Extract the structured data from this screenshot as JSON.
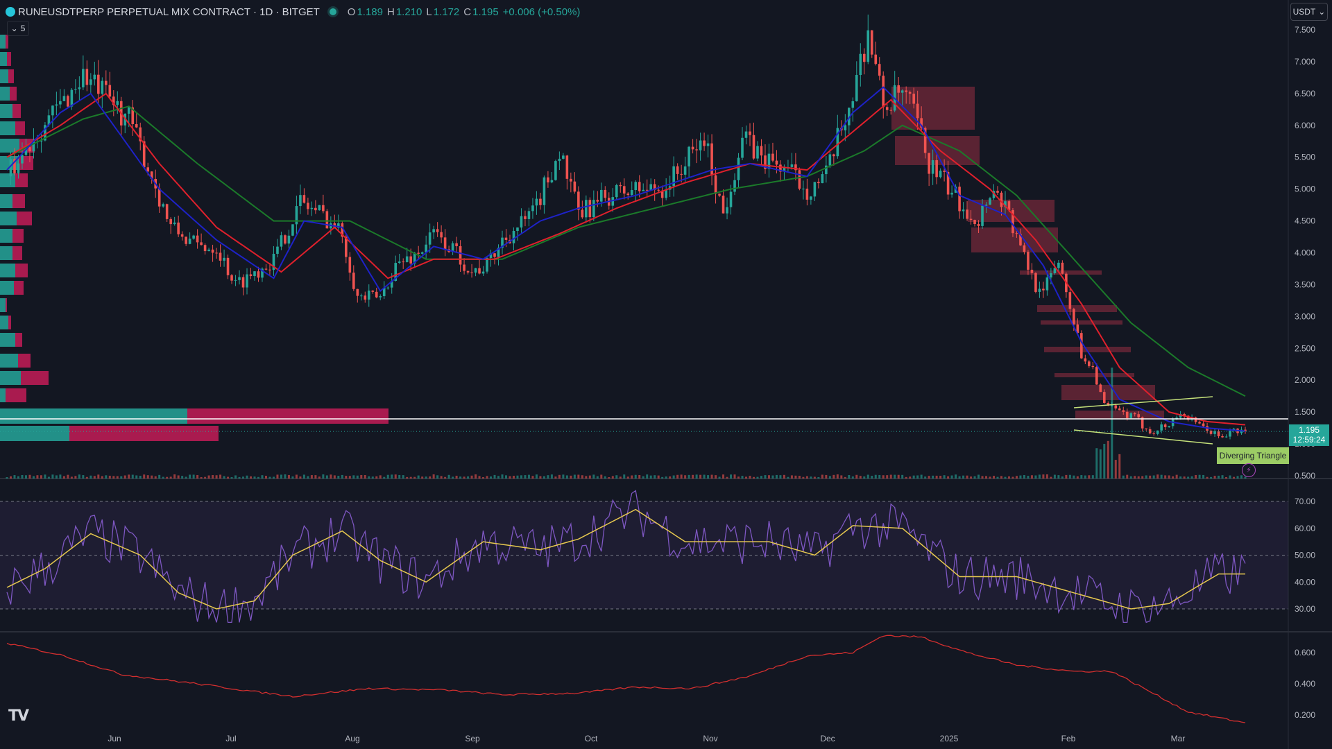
{
  "header": {
    "symbol": "RUNEUSDTPERP PERPETUAL MIX CONTRACT · 1D · BITGET",
    "open_label": "O",
    "open": "1.189",
    "high_label": "H",
    "high": "1.210",
    "low_label": "L",
    "low": "1.172",
    "close_label": "C",
    "close": "1.195",
    "change": "+0.006 (+0.50%)",
    "indicator_count": "5"
  },
  "currency_selector": "USDT",
  "last_price": "1.195",
  "countdown": "12:59:24",
  "pattern_label": "Diverging Triangle",
  "colors": {
    "background": "#131722",
    "up": "#26a69a",
    "down": "#ef5350",
    "ema_fast": "#1e22c8",
    "ema_mid": "#e0202c",
    "ema_slow": "#1b7a2a",
    "rsi": "#7e57c2",
    "rsi_ma": "#e6c84f",
    "pattern": "#c5e17a"
  },
  "icons": [
    "tradingview-logo-icon",
    "lightning-icon",
    "chevron-down-icon"
  ],
  "chart_data": {
    "type": "candlestick",
    "x_ticks": [
      "Jun",
      "Jul",
      "Aug",
      "Sep",
      "Oct",
      "Nov",
      "Dec",
      "2025",
      "Feb",
      "Mar"
    ],
    "price_axis": {
      "ticks": [
        "7.500",
        "7.000",
        "6.500",
        "6.000",
        "5.500",
        "5.000",
        "4.500",
        "4.000",
        "3.500",
        "3.000",
        "2.500",
        "2.000",
        "1.500",
        "1.000",
        "0.500"
      ],
      "ylim": [
        0.5,
        7.5
      ]
    },
    "rsi_axis": {
      "ticks": [
        "70.00",
        "60.00",
        "50.00",
        "40.00",
        "30.00"
      ],
      "ylim": [
        30,
        70
      ],
      "levels": [
        70,
        50,
        30
      ]
    },
    "osc_axis": {
      "ticks": [
        "0.600",
        "0.400",
        "0.200"
      ],
      "ylim": [
        0.2,
        0.6
      ]
    },
    "price_path": [
      [
        0,
        5.2
      ],
      [
        8,
        5.9
      ],
      [
        14,
        6.3
      ],
      [
        20,
        6.8
      ],
      [
        25,
        6.5
      ],
      [
        32,
        6.1
      ],
      [
        38,
        5.2
      ],
      [
        43,
        4.4
      ],
      [
        50,
        4.1
      ],
      [
        55,
        4.1
      ],
      [
        60,
        3.5
      ],
      [
        65,
        3.7
      ],
      [
        70,
        3.9
      ],
      [
        77,
        4.8
      ],
      [
        83,
        4.6
      ],
      [
        88,
        4.3
      ],
      [
        92,
        3.3
      ],
      [
        98,
        3.3
      ],
      [
        102,
        3.8
      ],
      [
        108,
        4.0
      ],
      [
        112,
        4.3
      ],
      [
        118,
        4.0
      ],
      [
        122,
        3.7
      ],
      [
        126,
        3.8
      ],
      [
        130,
        4.2
      ],
      [
        138,
        4.6
      ],
      [
        145,
        5.6
      ],
      [
        150,
        4.6
      ],
      [
        158,
        4.9
      ],
      [
        165,
        5.0
      ],
      [
        172,
        5.0
      ],
      [
        178,
        5.4
      ],
      [
        183,
        5.8
      ],
      [
        188,
        4.6
      ],
      [
        193,
        5.8
      ],
      [
        198,
        5.5
      ],
      [
        205,
        5.3
      ],
      [
        210,
        5.0
      ],
      [
        215,
        5.2
      ],
      [
        222,
        6.5
      ],
      [
        226,
        7.5
      ],
      [
        230,
        6.3
      ],
      [
        235,
        6.5
      ],
      [
        238,
        6.2
      ],
      [
        242,
        5.4
      ],
      [
        250,
        4.8
      ],
      [
        255,
        4.5
      ],
      [
        258,
        5.0
      ],
      [
        262,
        4.8
      ],
      [
        265,
        4.2
      ],
      [
        270,
        3.5
      ],
      [
        273,
        3.5
      ],
      [
        276,
        3.9
      ],
      [
        279,
        3.2
      ],
      [
        282,
        2.4
      ],
      [
        285,
        2.2
      ],
      [
        288,
        1.6
      ],
      [
        292,
        1.5
      ],
      [
        296,
        1.4
      ],
      [
        300,
        1.2
      ],
      [
        305,
        1.3
      ],
      [
        308,
        1.5
      ],
      [
        312,
        1.3
      ],
      [
        316,
        1.2
      ],
      [
        318,
        1.1
      ],
      [
        322,
        1.2
      ],
      [
        325,
        1.19
      ]
    ],
    "ema_fast_path": [
      [
        0,
        5.3
      ],
      [
        14,
        6.2
      ],
      [
        22,
        6.5
      ],
      [
        40,
        5.0
      ],
      [
        55,
        4.2
      ],
      [
        70,
        3.6
      ],
      [
        78,
        4.5
      ],
      [
        88,
        4.4
      ],
      [
        98,
        3.4
      ],
      [
        112,
        4.1
      ],
      [
        125,
        3.9
      ],
      [
        140,
        4.5
      ],
      [
        150,
        4.7
      ],
      [
        165,
        4.9
      ],
      [
        185,
        5.3
      ],
      [
        195,
        5.4
      ],
      [
        210,
        5.2
      ],
      [
        222,
        6.2
      ],
      [
        230,
        6.6
      ],
      [
        240,
        6.0
      ],
      [
        250,
        4.9
      ],
      [
        262,
        4.6
      ],
      [
        272,
        3.8
      ],
      [
        282,
        2.6
      ],
      [
        292,
        1.7
      ],
      [
        305,
        1.35
      ],
      [
        315,
        1.25
      ],
      [
        325,
        1.2
      ]
    ],
    "ema_mid_path": [
      [
        0,
        5.5
      ],
      [
        14,
        6.0
      ],
      [
        26,
        6.5
      ],
      [
        40,
        5.4
      ],
      [
        55,
        4.4
      ],
      [
        72,
        3.7
      ],
      [
        86,
        4.4
      ],
      [
        100,
        3.6
      ],
      [
        112,
        3.9
      ],
      [
        128,
        3.9
      ],
      [
        145,
        4.3
      ],
      [
        160,
        4.7
      ],
      [
        178,
        5.1
      ],
      [
        195,
        5.4
      ],
      [
        210,
        5.3
      ],
      [
        222,
        5.9
      ],
      [
        232,
        6.4
      ],
      [
        245,
        5.6
      ],
      [
        258,
        5.0
      ],
      [
        270,
        4.2
      ],
      [
        282,
        3.2
      ],
      [
        292,
        2.2
      ],
      [
        305,
        1.5
      ],
      [
        315,
        1.35
      ],
      [
        325,
        1.3
      ]
    ],
    "ema_slow_path": [
      [
        0,
        5.5
      ],
      [
        20,
        6.1
      ],
      [
        32,
        6.3
      ],
      [
        50,
        5.4
      ],
      [
        70,
        4.5
      ],
      [
        90,
        4.5
      ],
      [
        110,
        3.9
      ],
      [
        130,
        3.9
      ],
      [
        150,
        4.4
      ],
      [
        170,
        4.7
      ],
      [
        190,
        5.0
      ],
      [
        210,
        5.2
      ],
      [
        225,
        5.6
      ],
      [
        235,
        6.0
      ],
      [
        250,
        5.6
      ],
      [
        265,
        4.9
      ],
      [
        280,
        3.9
      ],
      [
        295,
        2.9
      ],
      [
        310,
        2.2
      ],
      [
        325,
        1.75
      ]
    ],
    "rsi_ma_path": [
      [
        0,
        38
      ],
      [
        10,
        45
      ],
      [
        22,
        58
      ],
      [
        35,
        50
      ],
      [
        45,
        36
      ],
      [
        55,
        30
      ],
      [
        65,
        33
      ],
      [
        75,
        50
      ],
      [
        88,
        59
      ],
      [
        98,
        48
      ],
      [
        110,
        40
      ],
      [
        125,
        55
      ],
      [
        140,
        52
      ],
      [
        150,
        56
      ],
      [
        165,
        67
      ],
      [
        178,
        55
      ],
      [
        190,
        55
      ],
      [
        200,
        55
      ],
      [
        212,
        50
      ],
      [
        222,
        61
      ],
      [
        235,
        60
      ],
      [
        250,
        42
      ],
      [
        265,
        42
      ],
      [
        280,
        36
      ],
      [
        295,
        30
      ],
      [
        305,
        32
      ],
      [
        312,
        38
      ],
      [
        318,
        43
      ],
      [
        325,
        43
      ]
    ],
    "osc_path": [
      [
        0,
        0.66
      ],
      [
        15,
        0.58
      ],
      [
        30,
        0.46
      ],
      [
        50,
        0.4
      ],
      [
        65,
        0.35
      ],
      [
        75,
        0.32
      ],
      [
        95,
        0.37
      ],
      [
        115,
        0.36
      ],
      [
        130,
        0.33
      ],
      [
        150,
        0.34
      ],
      [
        165,
        0.38
      ],
      [
        180,
        0.37
      ],
      [
        195,
        0.45
      ],
      [
        210,
        0.58
      ],
      [
        222,
        0.6
      ],
      [
        230,
        0.71
      ],
      [
        240,
        0.7
      ],
      [
        252,
        0.6
      ],
      [
        265,
        0.52
      ],
      [
        280,
        0.48
      ],
      [
        290,
        0.48
      ],
      [
        300,
        0.35
      ],
      [
        310,
        0.22
      ],
      [
        325,
        0.15
      ]
    ]
  }
}
